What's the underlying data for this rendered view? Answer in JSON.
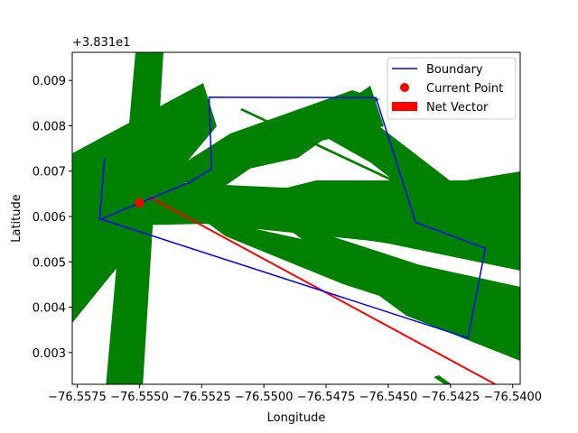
{
  "chart_data": {
    "type": "scatter",
    "xlabel": "Longitude",
    "ylabel": "Latitude",
    "y_offset_text": "+3.831e1",
    "y_offset": 38.31,
    "xlim": [
      -76.5577,
      -76.5397
    ],
    "ylim": [
      38.3123,
      38.31962
    ],
    "xticks": [
      -76.5575,
      -76.555,
      -76.5525,
      -76.55,
      -76.5475,
      -76.545,
      -76.5425,
      -76.54
    ],
    "xtick_labels": [
      "−76.5575",
      "−76.5550",
      "−76.5525",
      "−76.5500",
      "−76.5475",
      "−76.5450",
      "−76.5425",
      "−76.5400"
    ],
    "yticks": [
      0.003,
      0.004,
      0.005,
      0.006,
      0.007,
      0.008,
      0.009
    ],
    "ytick_labels": [
      "0.003",
      "0.004",
      "0.005",
      "0.006",
      "0.007",
      "0.008",
      "0.009"
    ],
    "legend_position": "top-right",
    "legend": [
      {
        "label": "Boundary",
        "kind": "line",
        "color": "#0000ff"
      },
      {
        "label": "Current Point",
        "kind": "dot",
        "color": "#ff0000"
      },
      {
        "label": "Net Vector",
        "kind": "patch",
        "color": "#ff0000"
      }
    ],
    "series": [
      {
        "name": "Boundary",
        "color": "#0000ff",
        "x": [
          -76.5564,
          -76.5566,
          -76.553,
          -76.5521,
          -76.5522,
          -76.5455,
          -76.5439,
          -76.5411,
          -76.5418,
          -76.5566,
          -76.5564
        ],
        "y": [
          38.3173,
          38.31593,
          38.31675,
          38.31705,
          38.31863,
          38.31862,
          38.31587,
          38.3153,
          38.31332,
          38.31595,
          38.3173
        ]
      },
      {
        "name": "Current Point",
        "color": "#ff0000",
        "x": [
          -76.555
        ],
        "y": [
          38.3163
        ]
      }
    ],
    "net_vector": {
      "color": "#ff0000",
      "x": [
        -76.5546,
        -76.5407
      ],
      "y": [
        38.31643,
        38.3123
      ]
    },
    "vector_color": "#008000"
  }
}
